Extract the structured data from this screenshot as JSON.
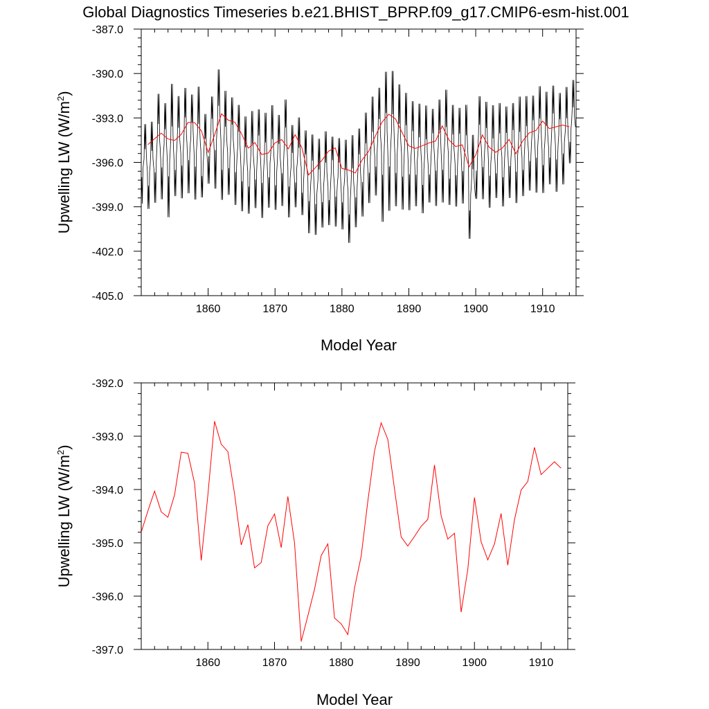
{
  "title": "Global Diagnostics Timeseries b.e21.BHIST_BPRP.f09_g17.CMIP6-esm-hist.001",
  "colors": {
    "monthly": "#000000",
    "annual": "#ff0000"
  },
  "chart_data": [
    {
      "type": "line",
      "xlabel": "Model Year",
      "ylabel": "Upwelling LW (W/m²)",
      "ylabel_main": "Upwelling LW (W/m",
      "ylabel_sup": "2",
      "ylabel_close": ")",
      "xlim": [
        1850,
        1915
      ],
      "ylim": [
        -405.0,
        -387.0
      ],
      "xticks": [
        1860,
        1870,
        1880,
        1890,
        1900,
        1910
      ],
      "xtick_labels": [
        "1860",
        "1870",
        "1880",
        "1890",
        "1900",
        "1910"
      ],
      "yticks": [
        -405.0,
        -402.0,
        -399.0,
        -396.0,
        -393.0,
        -390.0,
        -387.0
      ],
      "ytick_labels": [
        "-405.0",
        "-402.0",
        "-399.0",
        "-396.0",
        "-393.0",
        "-390.0",
        "-387.0"
      ],
      "grid": false,
      "series": [
        {
          "kind": "monthly",
          "color": "#000000",
          "x_start": 1850.0,
          "x_step": 0.08333,
          "note_from_annual_cycle": true,
          "annual_min": [
            -399.2,
            -399.6,
            -399.3,
            -399.0,
            -400.4,
            -398.8,
            -399.0,
            -398.6,
            -399.1,
            -398.8,
            -397.9,
            -398.4,
            -399.1,
            -398.7,
            -399.4,
            -399.8,
            -400.0,
            -399.6,
            -400.3,
            -399.6,
            -399.7,
            -399.5,
            -400.2,
            -399.5,
            -400.0,
            -401.3,
            -401.4,
            -400.9,
            -400.7,
            -400.8,
            -401.0,
            -402.0,
            -400.9,
            -400.2,
            -399.3,
            -398.8,
            -400.8,
            -400.0,
            -399.6,
            -399.8,
            -399.8,
            -399.5,
            -400.0,
            -399.2,
            -399.5,
            -399.3,
            -399.4,
            -399.5,
            -399.3,
            -401.7,
            -399.0,
            -399.0,
            -399.6,
            -398.9,
            -399.5,
            -398.9,
            -399.3,
            -398.8,
            -398.4,
            -398.6,
            -398.6,
            -398.0,
            -398.5,
            -398.0,
            -396.5
          ],
          "annual_max": [
            -393.0,
            -392.8,
            -390.8,
            -391.5,
            -390.0,
            -391.0,
            -390.4,
            -390.9,
            -390.3,
            -392.3,
            -391.1,
            -389.1,
            -390.6,
            -391.1,
            -391.6,
            -392.4,
            -392.0,
            -391.9,
            -392.1,
            -391.6,
            -392.3,
            -391.2,
            -393.0,
            -392.5,
            -393.4,
            -393.6,
            -393.9,
            -393.4,
            -393.8,
            -393.9,
            -394.0,
            -393.6,
            -393.2,
            -392.1,
            -391.0,
            -390.4,
            -389.1,
            -389.1,
            -390.1,
            -390.7,
            -391.3,
            -391.5,
            -391.6,
            -391.9,
            -391.2,
            -390.5,
            -391.6,
            -391.8,
            -391.6,
            -393.6,
            -391.0,
            -391.4,
            -391.6,
            -391.5,
            -391.7,
            -391.5,
            -391.0,
            -391.0,
            -391.0,
            -390.3,
            -390.7,
            -390.3,
            -390.8,
            -390.4,
            -390.0
          ]
        },
        {
          "kind": "annual",
          "color": "#ff0000",
          "x": [
            1851,
            1852,
            1853,
            1854,
            1855,
            1856,
            1857,
            1858,
            1859,
            1860,
            1861,
            1862,
            1863,
            1864,
            1865,
            1866,
            1867,
            1868,
            1869,
            1870,
            1871,
            1872,
            1873,
            1874,
            1875,
            1876,
            1877,
            1878,
            1879,
            1880,
            1881,
            1882,
            1883,
            1884,
            1885,
            1886,
            1887,
            1888,
            1889,
            1890,
            1891,
            1892,
            1893,
            1894,
            1895,
            1896,
            1897,
            1898,
            1899,
            1900,
            1901,
            1902,
            1903,
            1904,
            1905,
            1906,
            1907,
            1908,
            1909,
            1910,
            1911,
            1912,
            1913,
            1914
          ],
          "y": [
            -394.8,
            -394.4,
            -394.03,
            -394.42,
            -394.52,
            -394.1,
            -393.3,
            -393.32,
            -393.88,
            -395.33,
            -394.1,
            -392.72,
            -393.15,
            -393.29,
            -394.08,
            -395.04,
            -394.66,
            -395.47,
            -395.37,
            -394.68,
            -394.46,
            -395.09,
            -394.13,
            -395.0,
            -396.85,
            -396.37,
            -395.87,
            -395.24,
            -395.02,
            -396.41,
            -396.52,
            -396.72,
            -395.85,
            -395.25,
            -394.22,
            -393.28,
            -392.75,
            -393.06,
            -393.99,
            -394.89,
            -395.06,
            -394.88,
            -394.69,
            -394.56,
            -393.54,
            -394.49,
            -394.93,
            -394.82,
            -396.3,
            -395.5,
            -394.15,
            -394.98,
            -395.32,
            -395.02,
            -394.45,
            -395.42,
            -394.57,
            -394.01,
            -393.85,
            -393.21,
            -393.72,
            -393.6,
            -393.48,
            -393.6
          ]
        }
      ]
    },
    {
      "type": "line",
      "xlabel": "Model Year",
      "ylabel": "Upwelling LW (W/m²)",
      "ylabel_main": "Upwelling LW (W/m",
      "ylabel_sup": "2",
      "ylabel_close": ")",
      "xlim": [
        1850,
        1914
      ],
      "ylim": [
        -397.0,
        -392.0
      ],
      "xticks": [
        1860,
        1870,
        1880,
        1890,
        1900,
        1910
      ],
      "xtick_labels": [
        "1860",
        "1870",
        "1880",
        "1890",
        "1900",
        "1910"
      ],
      "yticks": [
        -397.0,
        -396.0,
        -395.0,
        -394.0,
        -393.0,
        -392.0
      ],
      "ytick_labels": [
        "-397.0",
        "-396.0",
        "-395.0",
        "-394.0",
        "-393.0",
        "-392.0"
      ],
      "grid": false,
      "series": [
        {
          "kind": "annual",
          "color": "#ff0000",
          "x": [
            1850,
            1851,
            1852,
            1853,
            1854,
            1855,
            1856,
            1857,
            1858,
            1859,
            1860,
            1861,
            1862,
            1863,
            1864,
            1865,
            1866,
            1867,
            1868,
            1869,
            1870,
            1871,
            1872,
            1873,
            1874,
            1875,
            1876,
            1877,
            1878,
            1879,
            1880,
            1881,
            1882,
            1883,
            1884,
            1885,
            1886,
            1887,
            1888,
            1889,
            1890,
            1891,
            1892,
            1893,
            1894,
            1895,
            1896,
            1897,
            1898,
            1899,
            1900,
            1901,
            1902,
            1903,
            1904,
            1905,
            1906,
            1907,
            1908,
            1909,
            1910,
            1911,
            1912,
            1913
          ],
          "y": [
            -394.8,
            -394.4,
            -394.03,
            -394.42,
            -394.52,
            -394.1,
            -393.3,
            -393.32,
            -393.88,
            -395.33,
            -394.1,
            -392.72,
            -393.15,
            -393.29,
            -394.08,
            -395.04,
            -394.66,
            -395.47,
            -395.37,
            -394.68,
            -394.46,
            -395.09,
            -394.13,
            -395.0,
            -396.85,
            -396.37,
            -395.87,
            -395.24,
            -395.02,
            -396.41,
            -396.52,
            -396.72,
            -395.85,
            -395.25,
            -394.22,
            -393.28,
            -392.75,
            -393.06,
            -393.99,
            -394.89,
            -395.06,
            -394.88,
            -394.69,
            -394.56,
            -393.54,
            -394.49,
            -394.93,
            -394.82,
            -396.3,
            -395.5,
            -394.15,
            -394.98,
            -395.32,
            -395.02,
            -394.45,
            -395.42,
            -394.57,
            -394.01,
            -393.85,
            -393.21,
            -393.72,
            -393.6,
            -393.48,
            -393.6
          ]
        }
      ]
    }
  ]
}
